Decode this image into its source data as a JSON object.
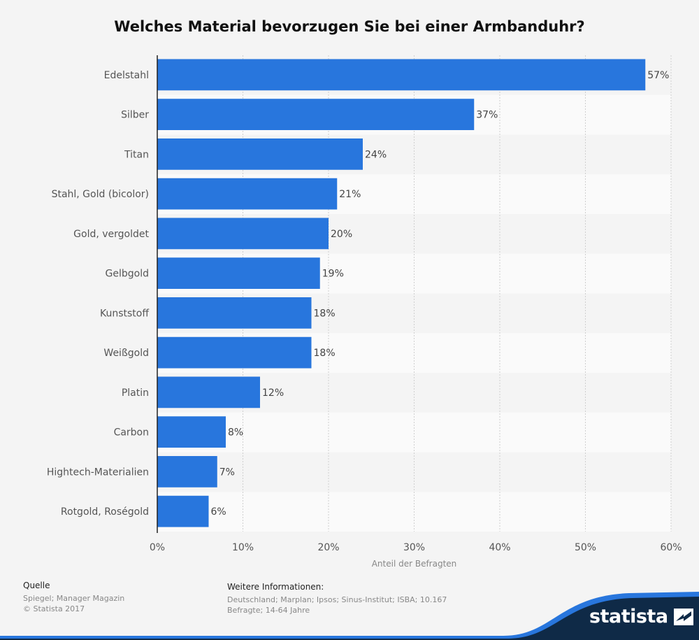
{
  "title": "Welches Material bevorzugen Sie bei einer Armbanduhr?",
  "chart_data": {
    "type": "bar",
    "orientation": "horizontal",
    "categories": [
      "Edelstahl",
      "Silber",
      "Titan",
      "Stahl, Gold (bicolor)",
      "Gold, vergoldet",
      "Gelbgold",
      "Kunststoff",
      "Weißgold",
      "Platin",
      "Carbon",
      "Hightech-Materialien",
      "Rotgold, Roségold"
    ],
    "values": [
      57,
      37,
      24,
      21,
      20,
      19,
      18,
      18,
      12,
      8,
      7,
      6
    ],
    "value_labels": [
      "57%",
      "37%",
      "24%",
      "21%",
      "20%",
      "19%",
      "18%",
      "18%",
      "12%",
      "8%",
      "7%",
      "6%"
    ],
    "xlabel": "Anteil der Befragten",
    "ylabel": "",
    "xlim": [
      0,
      60
    ],
    "ticks": [
      0,
      10,
      20,
      30,
      40,
      50,
      60
    ],
    "tick_labels": [
      "0%",
      "10%",
      "20%",
      "30%",
      "40%",
      "50%",
      "60%"
    ],
    "grid": true,
    "bar_color": "#2876dd"
  },
  "footer": {
    "source_heading": "Quelle",
    "source_lines": [
      "Spiegel; Manager Magazin",
      "© Statista 2017"
    ],
    "info_heading": "Weitere Informationen:",
    "info_lines": [
      "Deutschland; Marplan; Ipsos; Sinus-Institut; ISBA; 10.167",
      "Befragte; 14-64 Jahre"
    ]
  },
  "brand": {
    "name": "statista",
    "colors": {
      "navy": "#0f2a47",
      "blue": "#2876dd"
    }
  }
}
